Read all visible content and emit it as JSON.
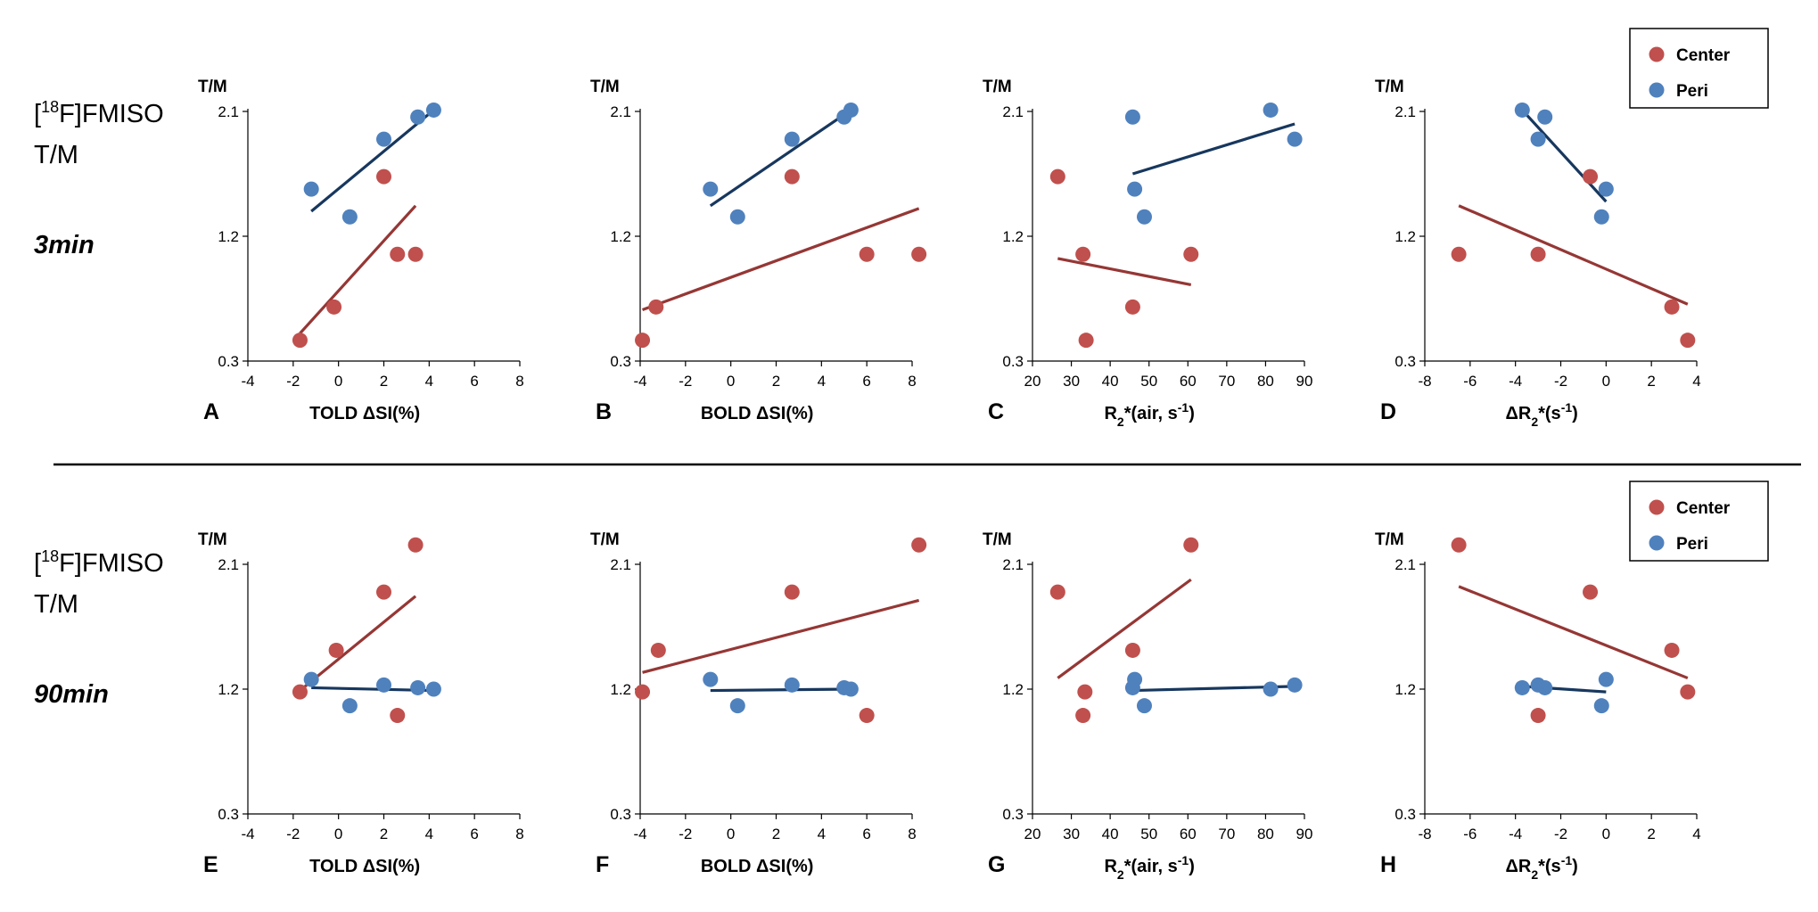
{
  "figure": {
    "rows": [
      {
        "label_pre": "[",
        "label_sup": "18",
        "label_post": "F]FMISO",
        "label_line2": "T/M",
        "time": "3min"
      },
      {
        "label_pre": "[",
        "label_sup": "18",
        "label_post": "F]FMISO",
        "label_line2": "T/M",
        "time": "90min"
      }
    ],
    "legend": {
      "entries": [
        "Center",
        "Peri"
      ]
    },
    "colors": {
      "center": "#c0504d",
      "center_line": "#953735",
      "peri": "#4f81bd",
      "peri_line": "#17375e"
    }
  },
  "chart_data": [
    {
      "panel": "A",
      "type": "scatter",
      "ylabel": "T/M",
      "xlabel": "TOLD ΔSI(%)",
      "xlim": [
        -4,
        8
      ],
      "xticks": [
        -4,
        -2,
        0,
        2,
        4,
        6,
        8
      ],
      "ylim": [
        0.3,
        2.1
      ],
      "yticks": [
        0.3,
        1.2,
        2.1
      ],
      "series": [
        {
          "name": "Center",
          "points": [
            [
              -1.7,
              0.45
            ],
            [
              -0.2,
              0.69
            ],
            [
              2.0,
              1.63
            ],
            [
              2.6,
              1.07
            ],
            [
              3.4,
              1.07
            ]
          ],
          "trend": [
            [
              -1.7,
              0.5
            ],
            [
              3.4,
              1.42
            ]
          ]
        },
        {
          "name": "Peri",
          "points": [
            [
              -1.2,
              1.54
            ],
            [
              0.5,
              1.34
            ],
            [
              2.0,
              1.9
            ],
            [
              3.5,
              2.06
            ],
            [
              4.2,
              2.11
            ]
          ],
          "trend": [
            [
              -1.2,
              1.38
            ],
            [
              4.2,
              2.11
            ]
          ]
        }
      ]
    },
    {
      "panel": "B",
      "type": "scatter",
      "ylabel": "T/M",
      "xlabel": "BOLD ΔSI(%)",
      "xlim": [
        -4,
        8
      ],
      "xticks": [
        -4,
        -2,
        0,
        2,
        4,
        6,
        8
      ],
      "ylim": [
        0.3,
        2.1
      ],
      "yticks": [
        0.3,
        1.2,
        2.1
      ],
      "series": [
        {
          "name": "Center",
          "points": [
            [
              -3.9,
              0.45
            ],
            [
              -3.3,
              0.69
            ],
            [
              2.7,
              1.63
            ],
            [
              6.0,
              1.07
            ],
            [
              8.3,
              1.07
            ]
          ],
          "trend": [
            [
              -3.9,
              0.67
            ],
            [
              8.3,
              1.4
            ]
          ]
        },
        {
          "name": "Peri",
          "points": [
            [
              -0.9,
              1.54
            ],
            [
              0.3,
              1.34
            ],
            [
              2.7,
              1.9
            ],
            [
              5.0,
              2.06
            ],
            [
              5.3,
              2.11
            ]
          ],
          "trend": [
            [
              -0.9,
              1.42
            ],
            [
              5.3,
              2.11
            ]
          ]
        }
      ]
    },
    {
      "panel": "C",
      "type": "scatter",
      "ylabel": "T/M",
      "xlabel": "R₂*(air, s⁻¹)",
      "xlim": [
        20,
        90
      ],
      "xticks": [
        20,
        30,
        40,
        50,
        60,
        70,
        80,
        90
      ],
      "ylim": [
        0.3,
        2.1
      ],
      "yticks": [
        0.3,
        1.2,
        2.1
      ],
      "series": [
        {
          "name": "Center",
          "points": [
            [
              26.5,
              1.63
            ],
            [
              33.0,
              1.07
            ],
            [
              33.8,
              0.45
            ],
            [
              45.8,
              0.69
            ],
            [
              60.8,
              1.07
            ]
          ],
          "trend": [
            [
              26.5,
              1.04
            ],
            [
              60.8,
              0.85
            ]
          ]
        },
        {
          "name": "Peri",
          "points": [
            [
              45.8,
              2.06
            ],
            [
              46.3,
              1.54
            ],
            [
              48.8,
              1.34
            ],
            [
              81.3,
              2.11
            ],
            [
              87.5,
              1.9
            ]
          ],
          "trend": [
            [
              45.8,
              1.65
            ],
            [
              87.5,
              2.01
            ]
          ]
        }
      ]
    },
    {
      "panel": "D",
      "type": "scatter",
      "ylabel": "T/M",
      "xlabel": "ΔR₂*(s⁻¹)",
      "xlim": [
        -8,
        4
      ],
      "xticks": [
        -8,
        -6,
        -4,
        -2,
        0,
        2,
        4
      ],
      "ylim": [
        0.3,
        2.1
      ],
      "yticks": [
        0.3,
        1.2,
        2.1
      ],
      "legend": true,
      "series": [
        {
          "name": "Center",
          "points": [
            [
              -6.5,
              1.07
            ],
            [
              -3.0,
              1.07
            ],
            [
              -0.7,
              1.63
            ],
            [
              2.9,
              0.69
            ],
            [
              3.6,
              0.45
            ]
          ],
          "trend": [
            [
              -6.5,
              1.42
            ],
            [
              3.6,
              0.71
            ]
          ]
        },
        {
          "name": "Peri",
          "points": [
            [
              -3.7,
              2.11
            ],
            [
              -3.0,
              1.9
            ],
            [
              -2.7,
              2.06
            ],
            [
              -0.2,
              1.34
            ],
            [
              0.0,
              1.54
            ]
          ],
          "trend": [
            [
              -3.7,
              2.11
            ],
            [
              0.0,
              1.45
            ]
          ]
        }
      ]
    },
    {
      "panel": "E",
      "type": "scatter",
      "ylabel": "T/M",
      "xlabel": "TOLD ΔSI(%)",
      "xlim": [
        -4,
        8
      ],
      "xticks": [
        -4,
        -2,
        0,
        2,
        4,
        6,
        8
      ],
      "ylim": [
        0.3,
        2.1
      ],
      "yticks": [
        0.3,
        1.2,
        2.1
      ],
      "series": [
        {
          "name": "Center",
          "points": [
            [
              -1.7,
              1.18
            ],
            [
              -0.1,
              1.48
            ],
            [
              2.0,
              1.9
            ],
            [
              2.6,
              1.01
            ],
            [
              3.4,
              2.24
            ]
          ],
          "trend": [
            [
              -1.7,
              1.19
            ],
            [
              3.4,
              1.87
            ]
          ]
        },
        {
          "name": "Peri",
          "points": [
            [
              -1.2,
              1.27
            ],
            [
              0.5,
              1.08
            ],
            [
              2.0,
              1.23
            ],
            [
              3.5,
              1.21
            ],
            [
              4.2,
              1.2
            ]
          ],
          "trend": [
            [
              -1.2,
              1.21
            ],
            [
              4.2,
              1.19
            ]
          ]
        }
      ]
    },
    {
      "panel": "F",
      "type": "scatter",
      "ylabel": "T/M",
      "xlabel": "BOLD ΔSI(%)",
      "xlim": [
        -4,
        8
      ],
      "xticks": [
        -4,
        -2,
        0,
        2,
        4,
        6,
        8
      ],
      "ylim": [
        0.3,
        2.1
      ],
      "yticks": [
        0.3,
        1.2,
        2.1
      ],
      "series": [
        {
          "name": "Center",
          "points": [
            [
              -3.9,
              1.18
            ],
            [
              -3.2,
              1.48
            ],
            [
              2.7,
              1.9
            ],
            [
              6.0,
              1.01
            ],
            [
              8.3,
              2.24
            ]
          ],
          "trend": [
            [
              -3.9,
              1.32
            ],
            [
              8.3,
              1.84
            ]
          ]
        },
        {
          "name": "Peri",
          "points": [
            [
              -0.9,
              1.27
            ],
            [
              0.3,
              1.08
            ],
            [
              2.7,
              1.23
            ],
            [
              5.0,
              1.21
            ],
            [
              5.3,
              1.2
            ]
          ],
          "trend": [
            [
              -0.9,
              1.19
            ],
            [
              5.3,
              1.2
            ]
          ]
        }
      ]
    },
    {
      "panel": "G",
      "type": "scatter",
      "ylabel": "T/M",
      "xlabel": "R₂*(air, s⁻¹)",
      "xlim": [
        20,
        90
      ],
      "xticks": [
        20,
        30,
        40,
        50,
        60,
        70,
        80,
        90
      ],
      "ylim": [
        0.3,
        2.1
      ],
      "yticks": [
        0.3,
        1.2,
        2.1
      ],
      "series": [
        {
          "name": "Center",
          "points": [
            [
              26.5,
              1.9
            ],
            [
              33.5,
              1.18
            ],
            [
              33.0,
              1.01
            ],
            [
              45.8,
              1.48
            ],
            [
              60.8,
              2.24
            ]
          ],
          "trend": [
            [
              26.5,
              1.28
            ],
            [
              60.8,
              1.99
            ]
          ]
        },
        {
          "name": "Peri",
          "points": [
            [
              45.8,
              1.21
            ],
            [
              46.3,
              1.27
            ],
            [
              48.8,
              1.08
            ],
            [
              81.3,
              1.2
            ],
            [
              87.5,
              1.23
            ]
          ],
          "trend": [
            [
              45.8,
              1.19
            ],
            [
              87.5,
              1.22
            ]
          ]
        }
      ]
    },
    {
      "panel": "H",
      "type": "scatter",
      "ylabel": "T/M",
      "xlabel": "ΔR₂*(s⁻¹)",
      "xlim": [
        -8,
        4
      ],
      "xticks": [
        -8,
        -6,
        -4,
        -2,
        0,
        2,
        4
      ],
      "ylim": [
        0.3,
        2.1
      ],
      "yticks": [
        0.3,
        1.2,
        2.1
      ],
      "legend": true,
      "series": [
        {
          "name": "Center",
          "points": [
            [
              -6.5,
              2.24
            ],
            [
              -3.0,
              1.01
            ],
            [
              -0.7,
              1.9
            ],
            [
              2.9,
              1.48
            ],
            [
              3.6,
              1.18
            ]
          ],
          "trend": [
            [
              -6.5,
              1.94
            ],
            [
              3.6,
              1.28
            ]
          ]
        },
        {
          "name": "Peri",
          "points": [
            [
              -3.7,
              1.21
            ],
            [
              -3.0,
              1.23
            ],
            [
              -2.7,
              1.21
            ],
            [
              -0.2,
              1.08
            ],
            [
              0.0,
              1.27
            ]
          ],
          "trend": [
            [
              -3.7,
              1.22
            ],
            [
              0.0,
              1.18
            ]
          ]
        }
      ]
    }
  ]
}
